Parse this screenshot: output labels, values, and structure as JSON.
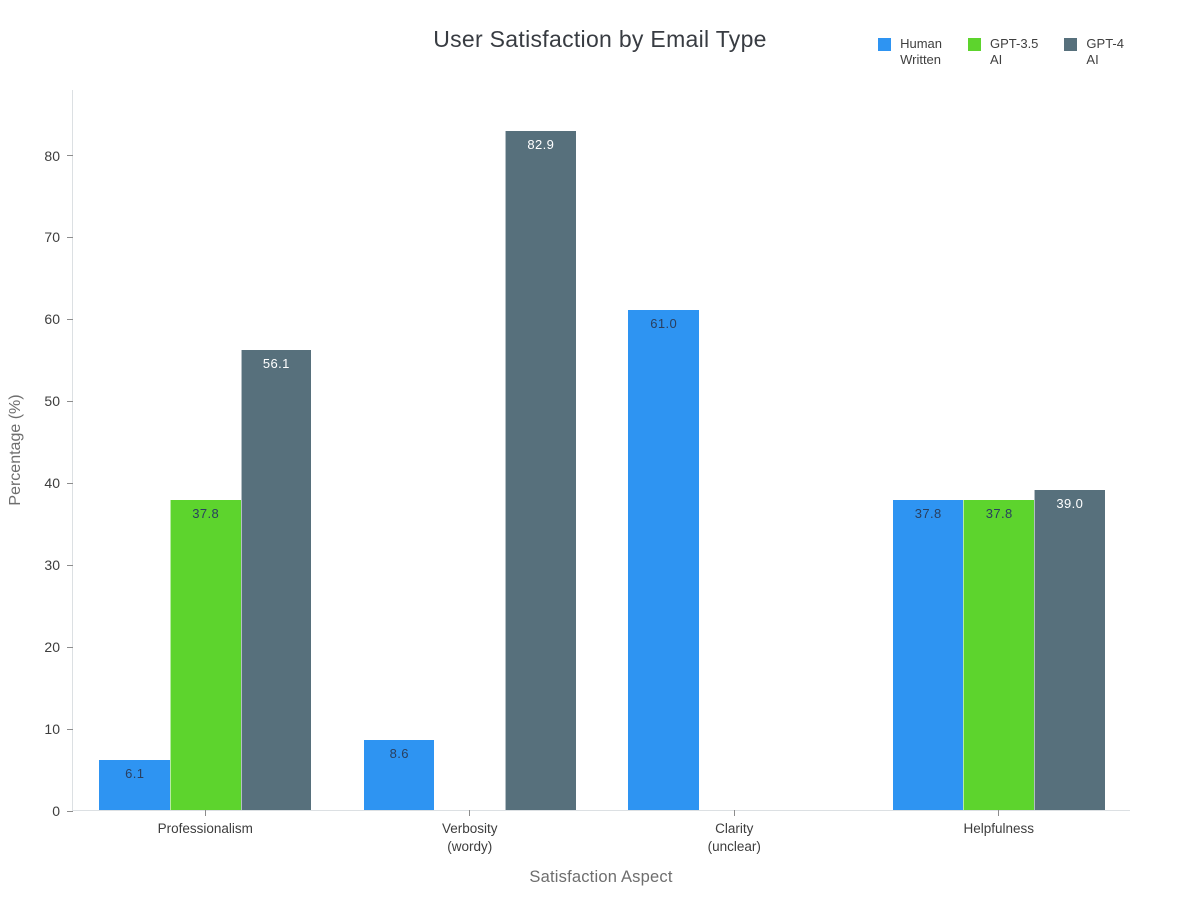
{
  "title": "User Satisfaction by Email Type",
  "chart_data": {
    "type": "bar",
    "title": "User Satisfaction by Email Type",
    "xlabel": "Satisfaction Aspect",
    "ylabel": "Percentage (%)",
    "categories": [
      "Professionalism",
      "Verbosity\n(wordy)",
      "Clarity\n(unclear)",
      "Helpfulness"
    ],
    "series": [
      {
        "name": "Human\nWritten",
        "color": "#2e94f2",
        "label_color": "#2a3f5f",
        "values": [
          6.1,
          8.6,
          61.0,
          37.8
        ]
      },
      {
        "name": "GPT-3.5\nAI",
        "color": "#5dd42d",
        "label_color": "#2a3f5f",
        "values": [
          37.8,
          0,
          0,
          37.8
        ]
      },
      {
        "name": "GPT-4\nAI",
        "color": "#57707c",
        "label_color": "#ffffff",
        "values": [
          56.1,
          82.9,
          0,
          39.0
        ]
      }
    ],
    "ylim": [
      0,
      88
    ],
    "yticks": [
      0,
      10,
      20,
      30,
      40,
      50,
      60,
      70,
      80
    ],
    "grid": false,
    "legend_position": "top-right",
    "value_labels": true,
    "value_label_decimals": 1,
    "bar_group_fraction": 0.8
  },
  "colors": {
    "background": "#ffffff",
    "axis_line": "#dce0e3",
    "tick": "#8c8c8c",
    "tick_label": "#3d3d3d",
    "axis_title": "#6e6e6e",
    "chart_title": "#383c42"
  }
}
